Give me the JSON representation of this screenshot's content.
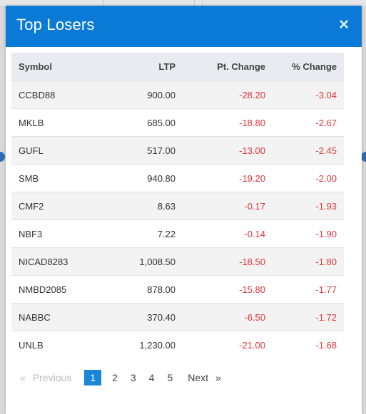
{
  "modal": {
    "title": "Top Losers",
    "close_label": "×"
  },
  "table": {
    "headers": {
      "symbol": "Symbol",
      "ltp": "LTP",
      "pt_change": "Pt. Change",
      "pct_change": "% Change"
    },
    "rows": [
      {
        "symbol": "CCBD88",
        "ltp": "900.00",
        "pt_change": "-28.20",
        "pct_change": "-3.04"
      },
      {
        "symbol": "MKLB",
        "ltp": "685.00",
        "pt_change": "-18.80",
        "pct_change": "-2.67"
      },
      {
        "symbol": "GUFL",
        "ltp": "517.00",
        "pt_change": "-13.00",
        "pct_change": "-2.45"
      },
      {
        "symbol": "SMB",
        "ltp": "940.80",
        "pt_change": "-19.20",
        "pct_change": "-2.00"
      },
      {
        "symbol": "CMF2",
        "ltp": "8.63",
        "pt_change": "-0.17",
        "pct_change": "-1.93"
      },
      {
        "symbol": "NBF3",
        "ltp": "7.22",
        "pt_change": "-0.14",
        "pct_change": "-1.90"
      },
      {
        "symbol": "NICAD8283",
        "ltp": "1,008.50",
        "pt_change": "-18.50",
        "pct_change": "-1.80"
      },
      {
        "symbol": "NMBD2085",
        "ltp": "878.00",
        "pt_change": "-15.80",
        "pct_change": "-1.77"
      },
      {
        "symbol": "NABBC",
        "ltp": "370.40",
        "pt_change": "-6.50",
        "pct_change": "-1.72"
      },
      {
        "symbol": "UNLB",
        "ltp": "1,230.00",
        "pt_change": "-21.00",
        "pct_change": "-1.68"
      }
    ]
  },
  "pagination": {
    "prev_arrow": "«",
    "previous": "Previous",
    "pages": [
      "1",
      "2",
      "3",
      "4",
      "5"
    ],
    "active_page": "1",
    "next": "Next",
    "next_arrow": "»"
  },
  "colors": {
    "header_bg": "#0a7ad6",
    "negative": "#e0383e",
    "active_page_bg": "#1a86d8"
  }
}
